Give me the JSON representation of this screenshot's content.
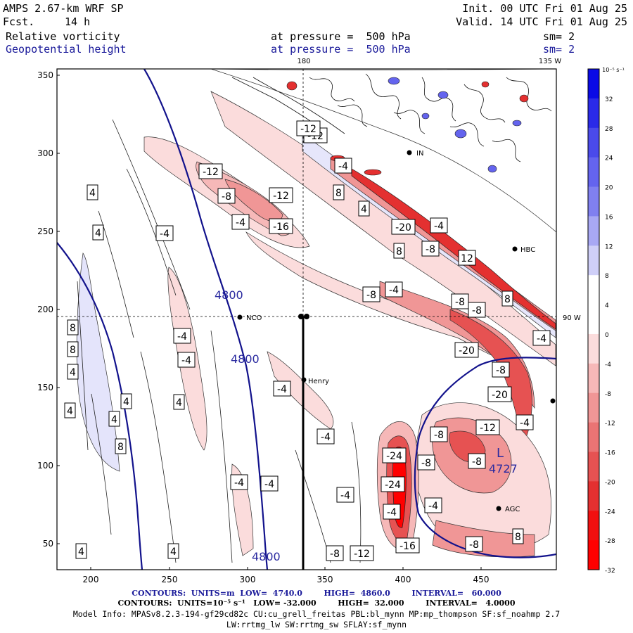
{
  "header": {
    "model": "AMPS 2.67-km WRF SP",
    "forecast_label": "Fcst.",
    "forecast_value": "14 h",
    "init": "Init. 00 UTC Fri 01 Aug 25",
    "valid": "Valid. 14 UTC Fri 01 Aug 25",
    "field1": "Relative vorticity",
    "field1_level": "at pressure =  500 hPa",
    "field1_sm": "sm= 2",
    "field2": "Geopotential height",
    "field2_level": "at pressure =  500 hPa",
    "field2_sm": "sm= 2"
  },
  "map": {
    "top_labels": [
      "180",
      "135 W"
    ],
    "right_label": "90 W",
    "x_ticks": [
      "200",
      "250",
      "300",
      "350",
      "400",
      "450"
    ],
    "y_ticks": [
      "350",
      "300",
      "250",
      "200",
      "150",
      "100",
      "50"
    ],
    "stations": [
      "NCO",
      "Henry",
      "HBC",
      "AGC",
      "IN"
    ],
    "height_labels": [
      "4800",
      "4800",
      "4800"
    ],
    "low_label": "L",
    "low_value": "4727",
    "vort_labels": [
      "-12",
      "-12",
      "-8",
      "-12",
      "-4",
      "-16",
      "-12",
      "-4",
      "4",
      "-4",
      "8",
      "-20",
      "4",
      "-4",
      "8",
      "-8",
      "-4",
      "12",
      "-8",
      "-8",
      "8",
      "-4",
      "-8",
      "-20",
      "-8",
      "-20",
      "-4",
      "-8",
      "-12",
      "-8",
      "-24",
      "-24",
      "-4",
      "-8",
      "-4",
      "-4",
      "-4",
      "-8",
      "-12",
      "-16",
      "-8",
      "8",
      "8",
      "8",
      "4",
      "4",
      "4",
      "8",
      "4",
      "4",
      "-4",
      "-4",
      "4",
      "4",
      "4",
      "-4",
      "-4",
      "-4"
    ],
    "colorbar_unit": "10⁻⁵ s⁻¹",
    "colorbar_ticks": [
      "32",
      "28",
      "24",
      "20",
      "16",
      "12",
      "8",
      "4",
      "0",
      "-4",
      "-8",
      "-12",
      "-16",
      "-20",
      "-24",
      "-28",
      "-32"
    ],
    "colorbar_colors": [
      "#0a0ae6",
      "#2a2ae8",
      "#4a4aea",
      "#6464ee",
      "#8080f0",
      "#a8a8f4",
      "#cfcff8",
      "#ffffff",
      "#ffffff",
      "#fbdcdc",
      "#f6b8b8",
      "#f09696",
      "#ea7474",
      "#e65252",
      "#e43030",
      "#f11010",
      "#ff0000"
    ]
  },
  "footer": {
    "line1": "CONTOURS:  UNITS=m  LOW=  4740.0        HIGH=  4860.0        INTERVAL=   60.000",
    "line2": "CONTOURS:  UNITS=10⁻⁵ s⁻¹   LOW= -32.000        HIGH=  32.000        INTERVAL=   4.0000",
    "line3": "Model Info: MPASv8.2.3-194-gf29cd82c CU:cu_grell_freitas PBL:bl_mynn MP:mp_thompson SF:sf_noahmp 2.7",
    "line4": "LW:rrtmg_lw SW:rrtmg_sw SFLAY:sf_mynn"
  }
}
